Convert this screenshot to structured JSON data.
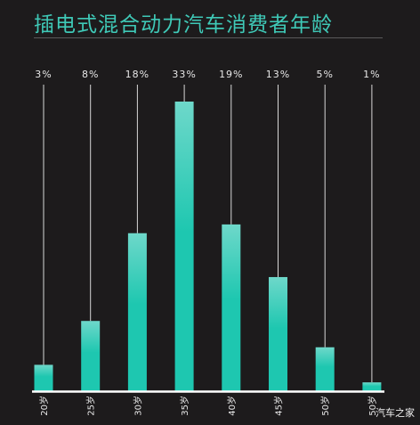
{
  "watermark": "汽车之家",
  "chart_data": {
    "type": "bar",
    "title": "插电式混合动力汽车消费者年龄",
    "categories": [
      "20岁",
      "25岁",
      "30岁",
      "35岁",
      "40岁",
      "45岁",
      "50岁",
      "50岁"
    ],
    "values": [
      3,
      8,
      18,
      33,
      19,
      13,
      5,
      1
    ],
    "value_labels": [
      "3%",
      "8%",
      "18%",
      "33%",
      "19%",
      "13%",
      "5%",
      "1%"
    ],
    "ylim": [
      0,
      35
    ],
    "grid": false,
    "legend": "none",
    "bar_color": "#1ec7b0",
    "bar_top_color": "#6ed8ca",
    "axis_color": "#ffffff"
  }
}
